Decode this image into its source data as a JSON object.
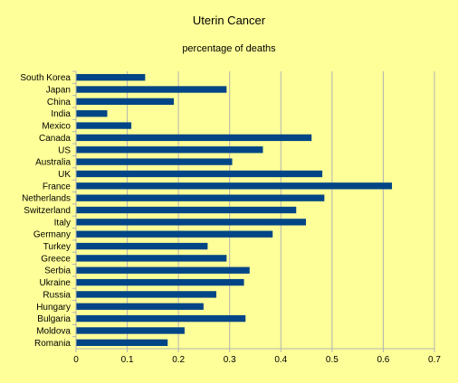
{
  "chart_data": {
    "type": "bar",
    "orientation": "horizontal",
    "title": "Uterin Cancer",
    "subtitle": "percentage of deaths",
    "categories": [
      "South Korea",
      "Japan",
      "China",
      "India",
      "Mexico",
      "Canada",
      "US",
      "Australia",
      "UK",
      "France",
      "Netherlands",
      "Switzerland",
      "Italy",
      "Germany",
      "Turkey",
      "Greece",
      "Serbia",
      "Ukraine",
      "Russia",
      "Hungary",
      "Bulgaria",
      "Moldova",
      "Romania"
    ],
    "values": [
      0.135,
      0.294,
      0.191,
      0.061,
      0.108,
      0.46,
      0.365,
      0.305,
      0.481,
      0.617,
      0.485,
      0.43,
      0.449,
      0.384,
      0.257,
      0.294,
      0.339,
      0.328,
      0.274,
      0.249,
      0.331,
      0.212,
      0.179
    ],
    "xlim": [
      0,
      0.7
    ],
    "xticks": [
      "0",
      "0.1",
      "0.2",
      "0.3",
      "0.4",
      "0.5",
      "0.6",
      "0.7"
    ],
    "grid": "vertical",
    "legend": "none",
    "bar_color": "#004586",
    "grid_color": "#b3b3b3",
    "background_color": "#ffff99"
  }
}
